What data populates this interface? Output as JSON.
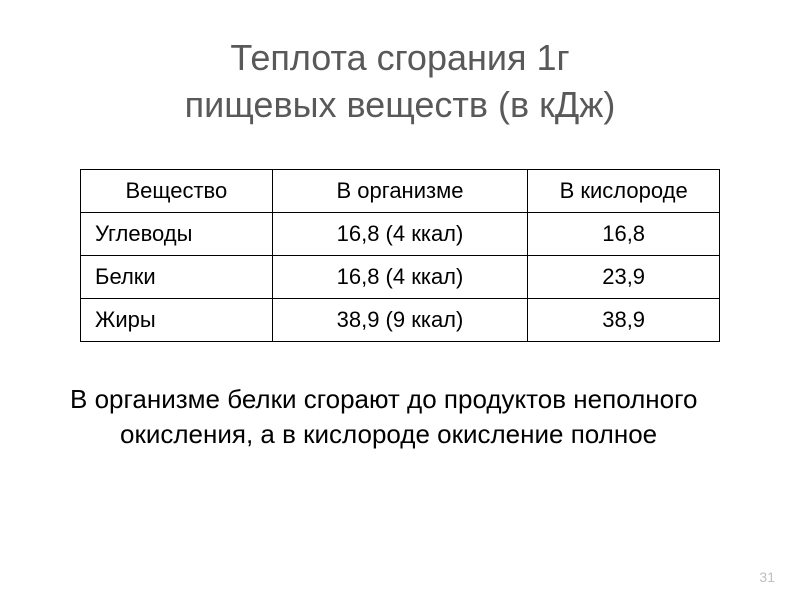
{
  "title": {
    "line1": "Теплота сгорания 1г",
    "line2": "пищевых веществ (в кДж)"
  },
  "table": {
    "columns": [
      {
        "label": "Вещество",
        "align": "center"
      },
      {
        "label": "В организме",
        "align": "center"
      },
      {
        "label": "В кислороде",
        "align": "center"
      }
    ],
    "rows": [
      {
        "substance": "Углеводы",
        "in_organism": "16,8 (4 ккал)",
        "in_oxygen": "16,8"
      },
      {
        "substance": "Белки",
        "in_organism": "16,8 (4 ккал)",
        "in_oxygen": "23,9"
      },
      {
        "substance": "Жиры",
        "in_organism": "38,9 (9 ккал)",
        "in_oxygen": "38,9"
      }
    ],
    "border_color": "#000000",
    "cell_fontsize": 22
  },
  "note": "В организме белки сгорают до продуктов неполного окисления, а в кислороде окисление полное",
  "page_number": "31",
  "colors": {
    "background": "#ffffff",
    "title_text": "#595959",
    "body_text": "#000000",
    "page_number": "#bfbfbf"
  },
  "typography": {
    "title_fontsize": 36,
    "cell_fontsize": 22,
    "note_fontsize": 26,
    "page_number_fontsize": 14
  }
}
